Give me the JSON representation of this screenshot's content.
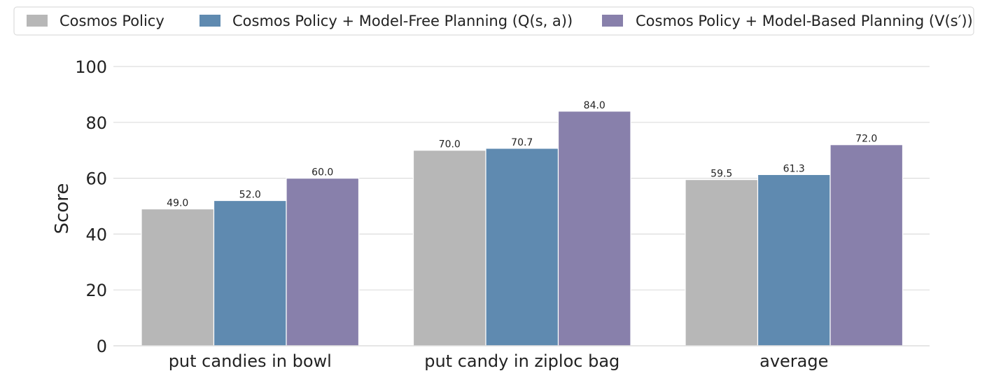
{
  "colors": {
    "cosmos": "#b7b7b7",
    "model_free": "#5f8ab0",
    "model_based": "#8880ab",
    "grid": "#dddddd",
    "text": "#222222"
  },
  "chart_data": {
    "type": "bar",
    "title": "",
    "xlabel": "",
    "ylabel": "Score",
    "ylim": [
      0,
      100
    ],
    "yticks": [
      "0",
      "20",
      "40",
      "60",
      "80",
      "100"
    ],
    "categories": [
      "put candies in bowl",
      "put candy in ziploc bag",
      "average"
    ],
    "series": [
      {
        "name": "Cosmos Policy",
        "color": "#b7b7b7",
        "values": [
          49.0,
          70.0,
          59.5
        ],
        "labels": [
          "49.0",
          "70.0",
          "59.5"
        ]
      },
      {
        "name": "Cosmos Policy + Model-Free Planning (Q(s, a))",
        "color": "#5f8ab0",
        "values": [
          52.0,
          70.7,
          61.3
        ],
        "labels": [
          "52.0",
          "70.7",
          "61.3"
        ]
      },
      {
        "name": "Cosmos Policy + Model-Based Planning (V(s′))",
        "color": "#8880ab",
        "values": [
          60.0,
          84.0,
          72.0
        ],
        "labels": [
          "60.0",
          "84.0",
          "72.0"
        ]
      }
    ],
    "legend_position": "top",
    "grid": true
  }
}
